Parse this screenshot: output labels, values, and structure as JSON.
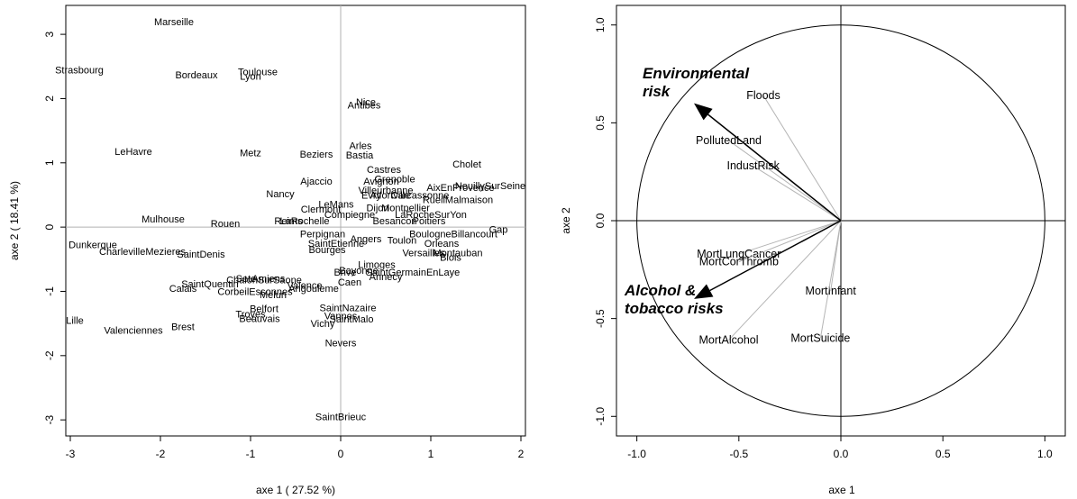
{
  "chart_data": [
    {
      "type": "scatter",
      "xlabel": "axe 1 ( 27.52 %)",
      "ylabel": "axe 2 ( 18.41 %)",
      "xlim": [
        -3.05,
        2.05
      ],
      "ylim": [
        -3.25,
        3.45
      ],
      "xticks": [
        -3,
        -2,
        -1,
        0,
        1,
        2
      ],
      "yticks": [
        -3,
        -2,
        -1,
        0,
        1,
        2,
        3
      ],
      "points": [
        {
          "label": "Marseille",
          "x": -1.85,
          "y": 3.2
        },
        {
          "label": "Strasbourg",
          "x": -2.9,
          "y": 2.45
        },
        {
          "label": "Bordeaux",
          "x": -1.6,
          "y": 2.37
        },
        {
          "label": "Toulouse",
          "x": -0.92,
          "y": 2.42
        },
        {
          "label": "Lyon",
          "x": -1.0,
          "y": 2.35
        },
        {
          "label": "Nice",
          "x": 0.28,
          "y": 1.95
        },
        {
          "label": "Antibes",
          "x": 0.26,
          "y": 1.9
        },
        {
          "label": "LeHavre",
          "x": -2.3,
          "y": 1.18
        },
        {
          "label": "Metz",
          "x": -1.0,
          "y": 1.16
        },
        {
          "label": "Beziers",
          "x": -0.27,
          "y": 1.14
        },
        {
          "label": "Bastia",
          "x": 0.21,
          "y": 1.12
        },
        {
          "label": "Arles",
          "x": 0.22,
          "y": 1.27
        },
        {
          "label": "Cholet",
          "x": 1.4,
          "y": 0.98
        },
        {
          "label": "Castres",
          "x": 0.48,
          "y": 0.9
        },
        {
          "label": "Grenoble",
          "x": 0.6,
          "y": 0.75
        },
        {
          "label": "Avignon",
          "x": 0.45,
          "y": 0.72
        },
        {
          "label": "Ajaccio",
          "x": -0.27,
          "y": 0.72
        },
        {
          "label": "NeuillySurSeine",
          "x": 1.66,
          "y": 0.65
        },
        {
          "label": "AixEnProvence",
          "x": 1.33,
          "y": 0.62
        },
        {
          "label": "Villeurbanne",
          "x": 0.5,
          "y": 0.58
        },
        {
          "label": "Nancy",
          "x": -0.67,
          "y": 0.52
        },
        {
          "label": "Evry",
          "x": 0.34,
          "y": 0.5
        },
        {
          "label": "Alfortville",
          "x": 0.55,
          "y": 0.5
        },
        {
          "label": "Carcassonne",
          "x": 0.88,
          "y": 0.5
        },
        {
          "label": "RueilMalmaison",
          "x": 1.3,
          "y": 0.43
        },
        {
          "label": "LeMans",
          "x": -0.05,
          "y": 0.36
        },
        {
          "label": "Dijon",
          "x": 0.41,
          "y": 0.3
        },
        {
          "label": "Montpellier",
          "x": 0.72,
          "y": 0.3
        },
        {
          "label": "Clermont",
          "x": -0.22,
          "y": 0.28
        },
        {
          "label": "Compiegne",
          "x": 0.1,
          "y": 0.2
        },
        {
          "label": "LaRocheSurYon",
          "x": 1.0,
          "y": 0.2
        },
        {
          "label": "Mulhouse",
          "x": -1.97,
          "y": 0.13
        },
        {
          "label": "Rouen",
          "x": -1.28,
          "y": 0.06
        },
        {
          "label": "Reims",
          "x": -0.58,
          "y": 0.1
        },
        {
          "label": "LaRochelle",
          "x": -0.4,
          "y": 0.1
        },
        {
          "label": "Besancon",
          "x": 0.6,
          "y": 0.1
        },
        {
          "label": "Poitiers",
          "x": 0.98,
          "y": 0.1
        },
        {
          "label": "Gap",
          "x": 1.75,
          "y": -0.03
        },
        {
          "label": "BoulogneBillancourt",
          "x": 1.25,
          "y": -0.1
        },
        {
          "label": "Perpignan",
          "x": -0.2,
          "y": -0.1
        },
        {
          "label": "Toulon",
          "x": 0.68,
          "y": -0.2
        },
        {
          "label": "Angers",
          "x": 0.28,
          "y": -0.18
        },
        {
          "label": "SaintEtienne",
          "x": -0.05,
          "y": -0.25
        },
        {
          "label": "Orleans",
          "x": 1.12,
          "y": -0.25
        },
        {
          "label": "Bourges",
          "x": -0.15,
          "y": -0.35
        },
        {
          "label": "Versailles",
          "x": 0.92,
          "y": -0.4
        },
        {
          "label": "Montauban",
          "x": 1.3,
          "y": -0.4
        },
        {
          "label": "Blois",
          "x": 1.22,
          "y": -0.47
        },
        {
          "label": "Dunkerque",
          "x": -2.75,
          "y": -0.27
        },
        {
          "label": "CharlevilleMezieres",
          "x": -2.2,
          "y": -0.38
        },
        {
          "label": "SaintDenis",
          "x": -1.55,
          "y": -0.42
        },
        {
          "label": "Limoges",
          "x": 0.4,
          "y": -0.58
        },
        {
          "label": "Bayonne",
          "x": 0.2,
          "y": -0.67
        },
        {
          "label": "Brive",
          "x": 0.05,
          "y": -0.7
        },
        {
          "label": "ChalonSurSaone",
          "x": -0.85,
          "y": -0.82
        },
        {
          "label": "Caen",
          "x": 0.1,
          "y": -0.85
        },
        {
          "label": "SaintGermainEnLaye",
          "x": 0.8,
          "y": -0.7
        },
        {
          "label": "Annecy",
          "x": 0.5,
          "y": -0.77
        },
        {
          "label": "Sete",
          "x": -1.05,
          "y": -0.8
        },
        {
          "label": "Amiens",
          "x": -0.8,
          "y": -0.8
        },
        {
          "label": "Valence",
          "x": -0.4,
          "y": -0.9
        },
        {
          "label": "SaintQuentin",
          "x": -1.45,
          "y": -0.88
        },
        {
          "label": "Angouleme",
          "x": -0.3,
          "y": -0.95
        },
        {
          "label": "Calais",
          "x": -1.75,
          "y": -0.95
        },
        {
          "label": "CorbeilEssonnes",
          "x": -0.95,
          "y": -1.0
        },
        {
          "label": "Melun",
          "x": -0.75,
          "y": -1.05
        },
        {
          "label": "SaintNazaire",
          "x": 0.08,
          "y": -1.25
        },
        {
          "label": "Belfort",
          "x": -0.85,
          "y": -1.27
        },
        {
          "label": "Troyes",
          "x": -1.0,
          "y": -1.35
        },
        {
          "label": "Beauvais",
          "x": -0.9,
          "y": -1.42
        },
        {
          "label": "Vannes",
          "x": 0.0,
          "y": -1.38
        },
        {
          "label": "SaintMalo",
          "x": 0.12,
          "y": -1.43
        },
        {
          "label": "Vichy",
          "x": -0.2,
          "y": -1.5
        },
        {
          "label": "Lille",
          "x": -2.95,
          "y": -1.45
        },
        {
          "label": "Valenciennes",
          "x": -2.3,
          "y": -1.6
        },
        {
          "label": "Brest",
          "x": -1.75,
          "y": -1.55
        },
        {
          "label": "Nevers",
          "x": 0.0,
          "y": -1.8
        },
        {
          "label": "SaintBrieuc",
          "x": 0.0,
          "y": -2.95
        }
      ]
    },
    {
      "type": "correlation-circle",
      "xlabel": "axe 1",
      "ylabel": "axe 2",
      "xlim": [
        -1.1,
        1.1
      ],
      "ylim": [
        -1.1,
        1.1
      ],
      "xticks": [
        "-1.0",
        "-0.5",
        "0.0",
        "0.5",
        "1.0"
      ],
      "yticks": [
        "-1.0",
        "-0.5",
        "0.0",
        "0.5",
        "1.0"
      ],
      "variables": [
        {
          "label": "Floods",
          "x": -0.38,
          "y": 0.64
        },
        {
          "label": "PollutedLand",
          "x": -0.55,
          "y": 0.41
        },
        {
          "label": "IndustRisk",
          "x": -0.43,
          "y": 0.28
        },
        {
          "label": "MortLungCancer",
          "x": -0.5,
          "y": -0.17
        },
        {
          "label": "MortCorThromb",
          "x": -0.5,
          "y": -0.21
        },
        {
          "label": "MortInfant",
          "x": -0.05,
          "y": -0.36
        },
        {
          "label": "MortSuicide",
          "x": -0.1,
          "y": -0.6
        },
        {
          "label": "MortAlcohol",
          "x": -0.55,
          "y": -0.61
        }
      ],
      "groups": [
        {
          "label_lines": [
            "Environmental",
            "risk"
          ],
          "x": -0.72,
          "y": 0.6
        },
        {
          "label_lines": [
            "Alcohol &",
            "tobacco risks"
          ],
          "x": -0.72,
          "y": -0.4
        }
      ]
    }
  ]
}
